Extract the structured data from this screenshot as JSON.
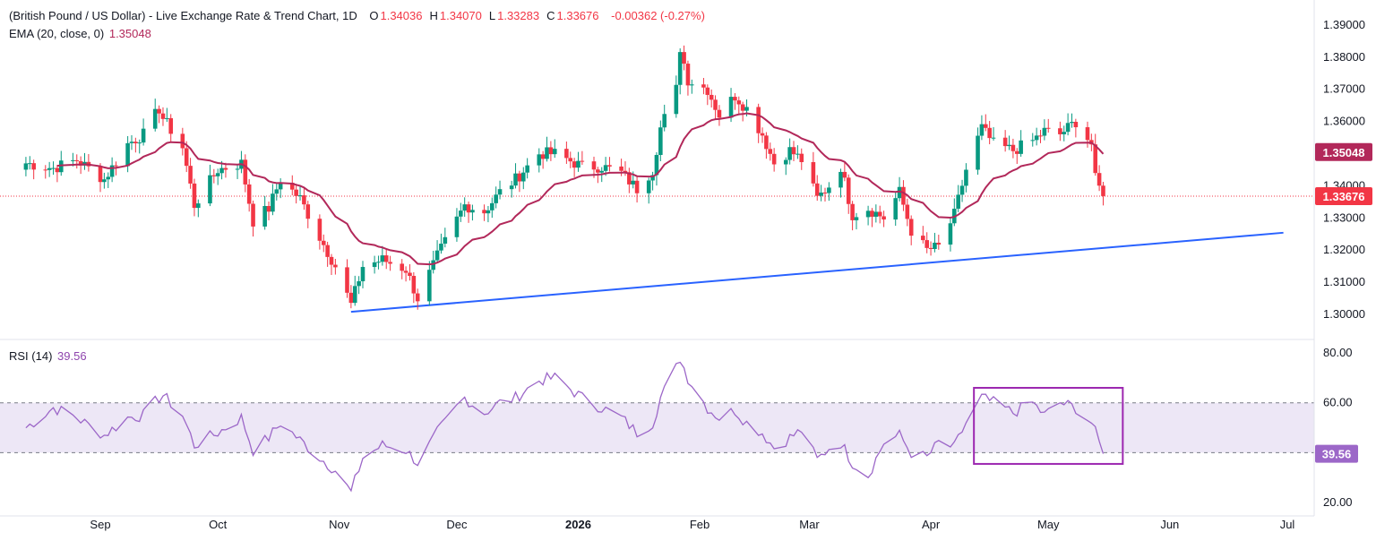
{
  "header": {
    "title": "(British Pound / US Dollar) - Live Exchange Rate & Trend Chart, 1D",
    "ohlc": [
      {
        "key": "O",
        "value": "1.34036"
      },
      {
        "key": "H",
        "value": "1.34070"
      },
      {
        "key": "L",
        "value": "1.33283"
      },
      {
        "key": "C",
        "value": "1.33676"
      }
    ],
    "change": "-0.00362 (-0.27%)"
  },
  "ema_legend": {
    "label": "EMA (20, close, 0)",
    "value": "1.35048"
  },
  "rsi_legend": {
    "label": "RSI (14)",
    "value": "39.56"
  },
  "colors": {
    "up": "#089981",
    "down": "#f23645",
    "ema": "#b2285a",
    "trend": "#2962ff",
    "rsi": "#9c67c8",
    "rsi_band": "#ede7f6",
    "box": "#9c27b0"
  },
  "chart_data": [
    {
      "type": "candlestick",
      "symbol": "GBP/USD",
      "interval": "1D",
      "ylim": [
        1.2985,
        1.3915
      ],
      "y_ticks": [
        "1.39000",
        "1.38000",
        "1.37000",
        "1.36000",
        "1.35000",
        "1.34000",
        "1.33000",
        "1.32000",
        "1.31000",
        "1.30000"
      ],
      "x_ticks": [
        "Sep",
        "Oct",
        "Nov",
        "Dec",
        "2026",
        "Feb",
        "Mar",
        "Apr",
        "May",
        "Jun",
        "Jul"
      ],
      "x_tick_dates": [
        "2025-09-01",
        "2025-10-01",
        "2025-11-01",
        "2025-12-01",
        "2026-01-01",
        "2026-02-01",
        "2026-03-01",
        "2026-04-01",
        "2026-05-01",
        "2026-06-01",
        "2026-07-01"
      ],
      "last_price": 1.33676,
      "price_labels": [
        "1.35048",
        "1.33676"
      ],
      "ema_last": 1.35048,
      "close_anchors": [
        [
          "2025-08-13",
          1.347
        ],
        [
          "2025-08-20",
          1.3455
        ],
        [
          "2025-08-26",
          1.348
        ],
        [
          "2025-09-02",
          1.342
        ],
        [
          "2025-09-08",
          1.353
        ],
        [
          "2025-09-12",
          1.356
        ],
        [
          "2025-09-16",
          1.364
        ],
        [
          "2025-09-17",
          1.361
        ],
        [
          "2025-09-22",
          1.352
        ],
        [
          "2025-09-25",
          1.334
        ],
        [
          "2025-10-01",
          1.345
        ],
        [
          "2025-10-07",
          1.347
        ],
        [
          "2025-10-10",
          1.329
        ],
        [
          "2025-10-14",
          1.333
        ],
        [
          "2025-10-17",
          1.342
        ],
        [
          "2025-10-22",
          1.336
        ],
        [
          "2025-10-27",
          1.324
        ],
        [
          "2025-10-31",
          1.315
        ],
        [
          "2025-11-04",
          1.303
        ],
        [
          "2025-11-07",
          1.315
        ],
        [
          "2025-11-12",
          1.317
        ],
        [
          "2025-11-18",
          1.314
        ],
        [
          "2025-11-21",
          1.305
        ],
        [
          "2025-11-26",
          1.318
        ],
        [
          "2025-12-03",
          1.334
        ],
        [
          "2025-12-08",
          1.332
        ],
        [
          "2025-12-12",
          1.338
        ],
        [
          "2025-12-16",
          1.342
        ],
        [
          "2025-12-22",
          1.35
        ],
        [
          "2025-12-26",
          1.35
        ],
        [
          "2026-01-02",
          1.346
        ],
        [
          "2026-01-07",
          1.346
        ],
        [
          "2026-01-12",
          1.344
        ],
        [
          "2026-01-16",
          1.339
        ],
        [
          "2026-01-20",
          1.345
        ],
        [
          "2026-01-22",
          1.358
        ],
        [
          "2026-01-26",
          1.37
        ],
        [
          "2026-01-27",
          1.383
        ],
        [
          "2026-01-29",
          1.373
        ],
        [
          "2026-02-03",
          1.37
        ],
        [
          "2026-02-06",
          1.362
        ],
        [
          "2026-02-10",
          1.368
        ],
        [
          "2026-02-13",
          1.364
        ],
        [
          "2026-02-17",
          1.356
        ],
        [
          "2026-02-20",
          1.347
        ],
        [
          "2026-02-24",
          1.351
        ],
        [
          "2026-02-27",
          1.348
        ],
        [
          "2026-03-03",
          1.336
        ],
        [
          "2026-03-06",
          1.34
        ],
        [
          "2026-03-09",
          1.346
        ],
        [
          "2026-03-12",
          1.331
        ],
        [
          "2026-03-16",
          1.333
        ],
        [
          "2026-03-20",
          1.33
        ],
        [
          "2026-03-24",
          1.338
        ],
        [
          "2026-03-27",
          1.326
        ],
        [
          "2026-03-31",
          1.32
        ],
        [
          "2026-04-03",
          1.321
        ],
        [
          "2026-04-07",
          1.331
        ],
        [
          "2026-04-10",
          1.345
        ],
        [
          "2026-04-14",
          1.358
        ],
        [
          "2026-04-17",
          1.353
        ],
        [
          "2026-04-22",
          1.351
        ],
        [
          "2026-04-27",
          1.354
        ],
        [
          "2026-04-30",
          1.357
        ],
        [
          "2026-05-04",
          1.356
        ],
        [
          "2026-05-08",
          1.36
        ],
        [
          "2026-05-12",
          1.353
        ],
        [
          "2026-05-13",
          1.342
        ],
        [
          "2026-05-15",
          1.3368
        ]
      ],
      "trendline": {
        "from": [
          "2025-11-04",
          1.3008
        ],
        "to": [
          "2026-06-30",
          1.3254
        ]
      }
    },
    {
      "type": "line",
      "name": "RSI (14)",
      "ylim": [
        15,
        85
      ],
      "y_ticks": [
        "80.00",
        "60.00",
        "40.00",
        "20.00"
      ],
      "band": [
        40,
        60
      ],
      "value_label": "39.56",
      "anchors": [
        [
          "2025-08-13",
          50
        ],
        [
          "2025-08-20",
          58
        ],
        [
          "2025-08-26",
          54
        ],
        [
          "2025-09-02",
          47
        ],
        [
          "2025-09-08",
          54
        ],
        [
          "2025-09-12",
          55
        ],
        [
          "2025-09-16",
          62
        ],
        [
          "2025-09-17",
          63
        ],
        [
          "2025-09-22",
          55
        ],
        [
          "2025-09-25",
          43
        ],
        [
          "2025-10-01",
          48
        ],
        [
          "2025-10-07",
          54
        ],
        [
          "2025-10-10",
          41
        ],
        [
          "2025-10-14",
          46
        ],
        [
          "2025-10-17",
          52
        ],
        [
          "2025-10-22",
          45
        ],
        [
          "2025-10-27",
          38
        ],
        [
          "2025-10-31",
          33
        ],
        [
          "2025-11-04",
          24
        ],
        [
          "2025-11-07",
          38
        ],
        [
          "2025-11-12",
          43
        ],
        [
          "2025-11-18",
          41
        ],
        [
          "2025-11-21",
          36
        ],
        [
          "2025-11-26",
          48
        ],
        [
          "2025-12-03",
          62
        ],
        [
          "2025-12-08",
          56
        ],
        [
          "2025-12-12",
          60
        ],
        [
          "2025-12-16",
          62
        ],
        [
          "2025-12-22",
          69
        ],
        [
          "2025-12-26",
          70
        ],
        [
          "2026-01-02",
          62
        ],
        [
          "2026-01-07",
          58
        ],
        [
          "2026-01-12",
          54
        ],
        [
          "2026-01-16",
          48
        ],
        [
          "2026-01-20",
          52
        ],
        [
          "2026-01-22",
          62
        ],
        [
          "2026-01-26",
          74
        ],
        [
          "2026-01-27",
          78
        ],
        [
          "2026-01-29",
          70
        ],
        [
          "2026-02-03",
          58
        ],
        [
          "2026-02-06",
          54
        ],
        [
          "2026-02-10",
          57
        ],
        [
          "2026-02-13",
          52
        ],
        [
          "2026-02-17",
          48
        ],
        [
          "2026-02-20",
          42
        ],
        [
          "2026-02-24",
          46
        ],
        [
          "2026-02-27",
          49
        ],
        [
          "2026-03-03",
          37
        ],
        [
          "2026-03-06",
          42
        ],
        [
          "2026-03-09",
          44
        ],
        [
          "2026-03-12",
          36
        ],
        [
          "2026-03-16",
          31
        ],
        [
          "2026-03-20",
          44
        ],
        [
          "2026-03-24",
          47
        ],
        [
          "2026-03-27",
          40
        ],
        [
          "2026-03-31",
          38
        ],
        [
          "2026-04-03",
          44
        ],
        [
          "2026-04-07",
          42
        ],
        [
          "2026-04-10",
          52
        ],
        [
          "2026-04-14",
          62
        ],
        [
          "2026-04-17",
          60
        ],
        [
          "2026-04-22",
          56
        ],
        [
          "2026-04-27",
          60
        ],
        [
          "2026-04-30",
          55
        ],
        [
          "2026-05-04",
          60
        ],
        [
          "2026-05-08",
          58
        ],
        [
          "2026-05-12",
          52
        ],
        [
          "2026-05-13",
          48
        ],
        [
          "2026-05-15",
          39.56
        ]
      ],
      "highlight_box": {
        "from": [
          "2026-04-12",
          66
        ],
        "to": [
          "2026-05-20",
          35.5
        ]
      }
    }
  ]
}
